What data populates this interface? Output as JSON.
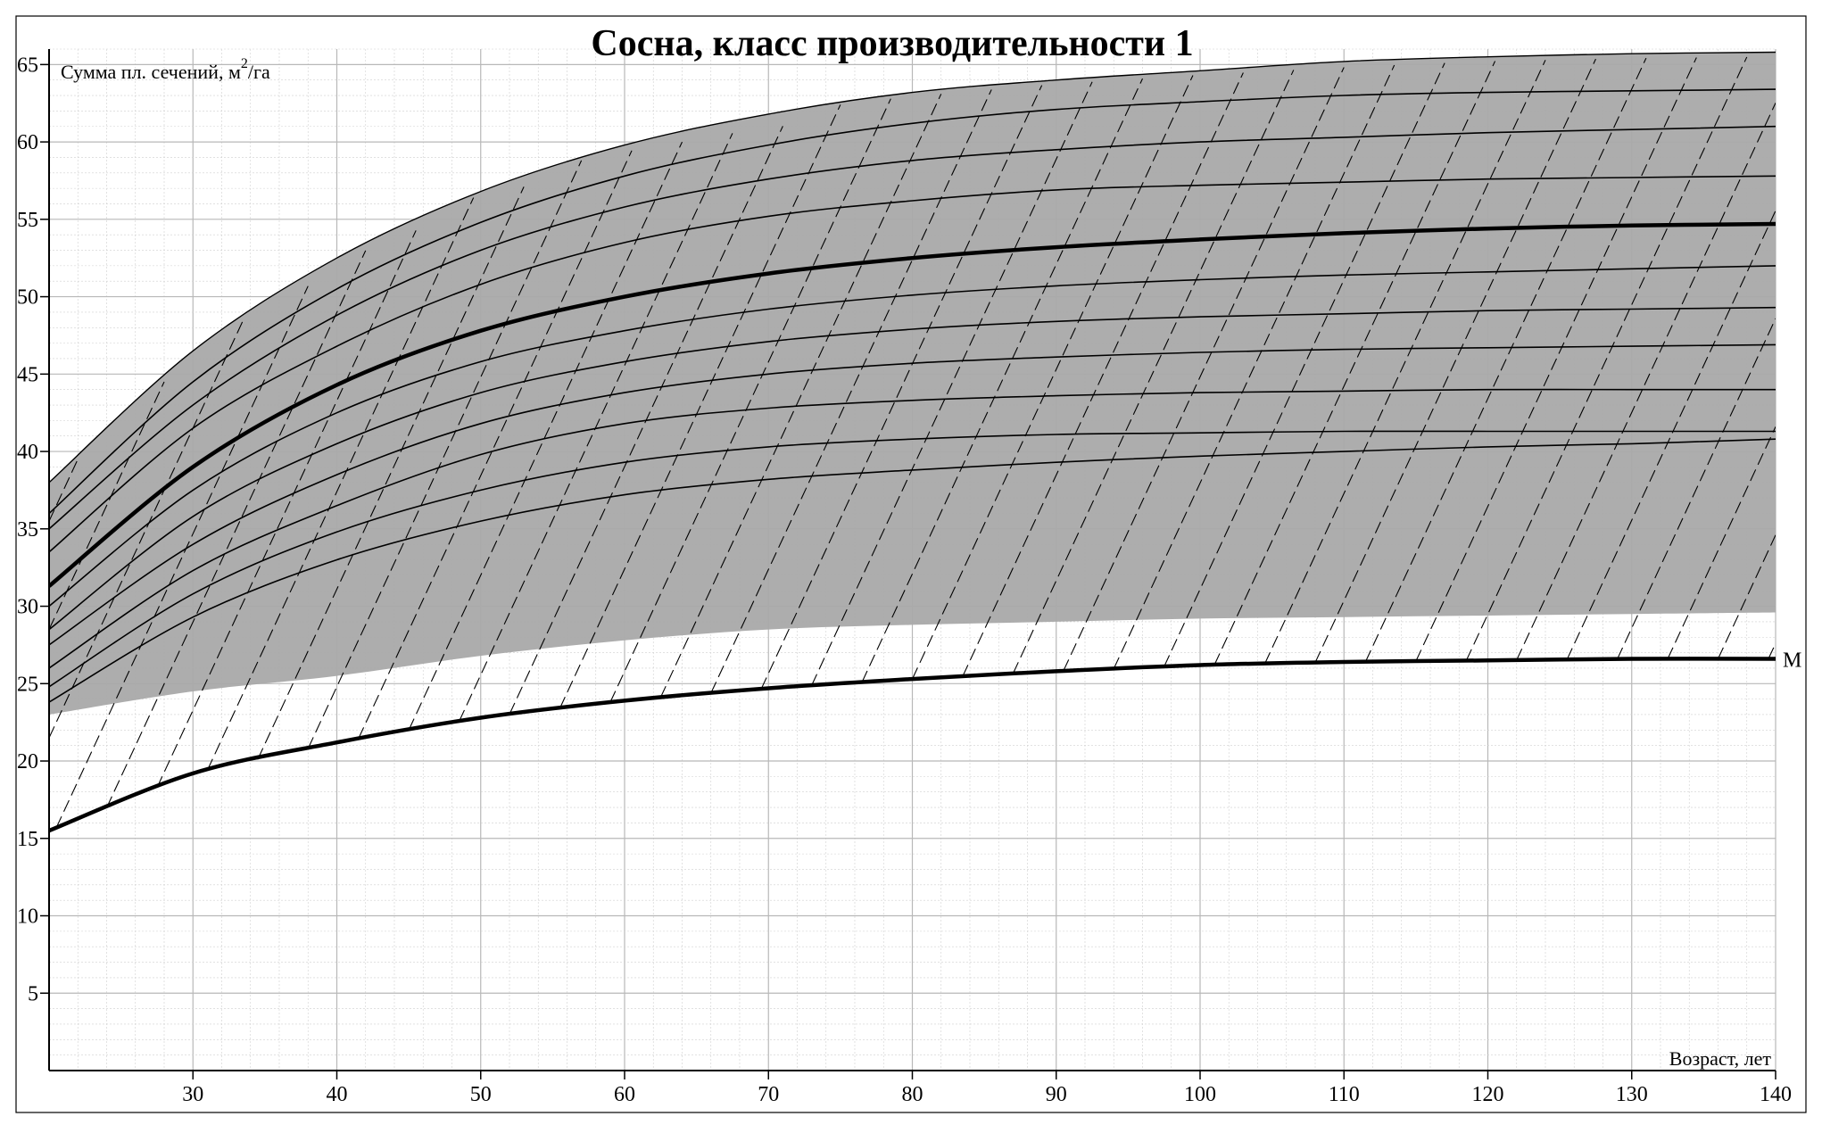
{
  "chart_data": {
    "type": "line",
    "title": "Сосна, класс производительности 1",
    "ylabel_main": "Сумма пл. сечений, м",
    "ylabel_sup": "2",
    "ylabel_tail": "/га",
    "xlabel": "Возраст, лет",
    "xlim": [
      20,
      140
    ],
    "ylim": [
      0,
      66
    ],
    "x_ticks": [
      30,
      40,
      50,
      60,
      70,
      80,
      90,
      100,
      110,
      120,
      130,
      140
    ],
    "y_ticks": [
      5,
      10,
      15,
      20,
      25,
      30,
      35,
      40,
      45,
      50,
      55,
      60,
      65
    ],
    "grid": true,
    "colors": {
      "band": "#a9a9a9",
      "line": "#000000",
      "grid": "#d0d0d0",
      "background": "#ffffff"
    },
    "x": [
      20,
      30,
      40,
      50,
      60,
      70,
      80,
      90,
      100,
      110,
      120,
      130,
      140
    ],
    "band_upper": [
      38.0,
      46.5,
      52.5,
      56.8,
      59.8,
      61.8,
      63.2,
      64.0,
      64.6,
      65.2,
      65.5,
      65.7,
      65.8
    ],
    "band_lower": [
      23.0,
      24.5,
      25.5,
      26.8,
      27.8,
      28.5,
      28.8,
      29.0,
      29.2,
      29.3,
      29.4,
      29.5,
      29.6
    ],
    "series": [
      {
        "values": [
          36.0,
          44.5,
          50.5,
          54.8,
          57.8,
          59.8,
          61.2,
          62.1,
          62.6,
          63.0,
          63.2,
          63.3,
          63.4
        ]
      },
      {
        "values": [
          35.0,
          43.0,
          48.8,
          53.0,
          55.8,
          57.6,
          58.8,
          59.5,
          60.0,
          60.3,
          60.6,
          60.8,
          61.0
        ]
      },
      {
        "values": [
          33.5,
          41.5,
          46.8,
          50.8,
          53.5,
          55.2,
          56.2,
          56.9,
          57.2,
          57.4,
          57.6,
          57.7,
          57.8
        ]
      },
      {
        "name": "",
        "values": [
          31.3,
          39.0,
          44.3,
          47.8,
          50.0,
          51.5,
          52.5,
          53.2,
          53.7,
          54.1,
          54.4,
          54.6,
          54.7
        ]
      },
      {
        "values": [
          30.0,
          37.5,
          42.5,
          45.8,
          47.8,
          49.2,
          50.1,
          50.7,
          51.1,
          51.4,
          51.6,
          51.8,
          52.0
        ]
      },
      {
        "values": [
          28.5,
          35.8,
          40.5,
          43.8,
          45.8,
          47.1,
          47.9,
          48.4,
          48.7,
          48.9,
          49.1,
          49.2,
          49.3
        ]
      },
      {
        "values": [
          27.5,
          34.0,
          38.5,
          41.8,
          43.8,
          45.0,
          45.7,
          46.1,
          46.4,
          46.6,
          46.7,
          46.8,
          46.9
        ]
      },
      {
        "values": [
          26.0,
          32.3,
          36.5,
          39.8,
          41.8,
          42.8,
          43.3,
          43.6,
          43.8,
          43.9,
          44.0,
          44.0,
          44.0
        ]
      },
      {
        "values": [
          24.8,
          30.8,
          34.8,
          37.5,
          39.3,
          40.3,
          40.8,
          41.1,
          41.2,
          41.3,
          41.3,
          41.3,
          41.3
        ]
      },
      {
        "values": [
          23.8,
          29.3,
          33.0,
          35.5,
          37.2,
          38.2,
          38.8,
          39.3,
          39.7,
          40.0,
          40.3,
          40.5,
          40.8
        ]
      }
    ],
    "m_curve": {
      "label": "M",
      "values": [
        15.5,
        19.2,
        21.2,
        22.8,
        23.9,
        24.7,
        25.3,
        25.8,
        26.2,
        26.4,
        26.5,
        26.6,
        26.6
      ]
    }
  }
}
